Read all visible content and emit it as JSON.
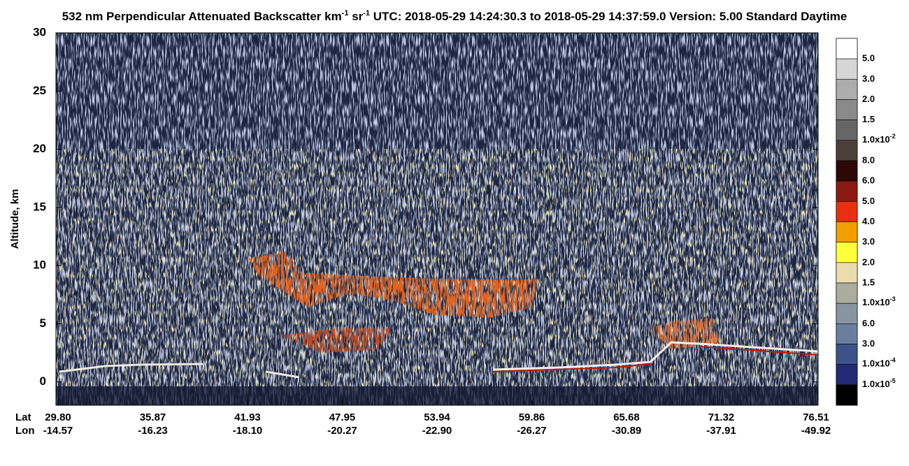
{
  "chart_data": {
    "type": "heatmap",
    "title": [
      "532 nm Perpendicular Attenuated Backscatter km",
      "-1",
      " sr",
      "-1",
      "  UTC: 2018-05-29 14:24:30.3 to 2018-05-29 14:37:59.0  Version: 5.00 Standard Daytime"
    ],
    "ylabel": "Altitude, km",
    "ylim": [
      -2,
      30
    ],
    "yticks": [
      0,
      5,
      10,
      15,
      20,
      25,
      30
    ],
    "x_row_labels": [
      "Lat",
      "Lon"
    ],
    "lat": [
      "29.80",
      "35.87",
      "41.93",
      "47.95",
      "53.94",
      "59.86",
      "65.68",
      "71.32",
      "76.51"
    ],
    "lon": [
      "-14.57",
      "-16.23",
      "-18.10",
      "-20.27",
      "-22.90",
      "-26.27",
      "-30.89",
      "-37.91",
      "-49.92"
    ],
    "colorbar": {
      "colors": [
        "#ffffff",
        "#d6d6d6",
        "#adadad",
        "#8a8a8a",
        "#666666",
        "#4a3f3b",
        "#2e0806",
        "#8a1a12",
        "#e8300e",
        "#f59e00",
        "#ffff3c",
        "#eadcac",
        "#acac9e",
        "#8894a0",
        "#6a7ea0",
        "#3c5288",
        "#222a76",
        "#000000"
      ],
      "labels": [
        "5.0",
        "3.0",
        "2.0",
        "1.5",
        [
          "1.0x10",
          "-2"
        ],
        "8.0",
        "6.0",
        "5.0",
        "4.0",
        "3.0",
        "2.0",
        "1.5",
        [
          "1.0x10",
          "-3"
        ],
        "6.0",
        "3.0",
        [
          "1.0x10",
          "-4"
        ],
        [
          "1.0x10",
          "-5"
        ]
      ]
    }
  }
}
